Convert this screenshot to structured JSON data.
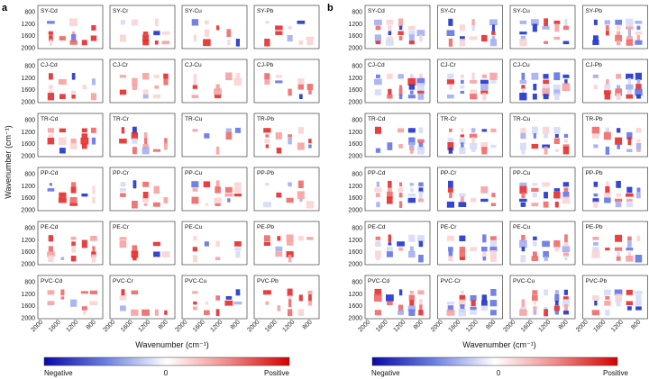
{
  "figure": {
    "panels": [
      {
        "letter": "a",
        "y_axis_label": "Wavenumber (cm⁻¹)",
        "x_axis_label": "Wavenumber (cm⁻¹)",
        "row_labels": [
          [
            "SY-Cd",
            "SY-Cr",
            "SY-Cu",
            "SY-Pb"
          ],
          [
            "CJ-Cd",
            "CJ-Cr",
            "CJ-Cu",
            "CJ-Pb"
          ],
          [
            "TR-Cd",
            "TR-Cr",
            "TR-Cu",
            "TR-Pb"
          ],
          [
            "PP-Cd",
            "PP-Cr",
            "PP-Cu",
            "PP-Pb"
          ],
          [
            "PE-Cd",
            "PE-Cr",
            "PE-Cu",
            "PE-Pb"
          ],
          [
            "PVC-Cd",
            "PVC-Cr",
            "PVC-Cu",
            "PVC-Pb"
          ]
        ],
        "y_ticks": [
          "800",
          "1200",
          "1600",
          "2000"
        ],
        "x_ticks": [
          "2000",
          "1600",
          "1200",
          "800"
        ]
      },
      {
        "letter": "b",
        "row_labels": [
          [
            "SY-Cd",
            "SY-Cr",
            "SY-Cu",
            "SY-Pb"
          ],
          [
            "CJ-Cd",
            "CJ-Cr",
            "CJ-Cu",
            "CJ-Pb"
          ],
          [
            "TR-Cd",
            "TR-Cr",
            "TR-Cu",
            "TR-Pb"
          ],
          [
            "PP-Cd",
            "PP-Cr",
            "PP-Cu",
            "PP-Pb"
          ],
          [
            "PE-Cd",
            "PE-Cr",
            "PE-Cu",
            "PE-Pb"
          ],
          [
            "PVC-Cd",
            "PVC-Cr",
            "PVC-Cu",
            "PVC-Pb"
          ]
        ],
        "y_ticks": [
          "800",
          "1200",
          "1600",
          "2000"
        ],
        "x_ticks": [
          "2000",
          "1600",
          "1200",
          "800"
        ],
        "x_axis_label": "Wavenumber (cm⁻¹)"
      }
    ],
    "colorbar": {
      "negative_label": "Negative",
      "zero_label": "0",
      "positive_label": "Positive",
      "negative_color": "#1a1acc",
      "positive_color": "#e01010"
    }
  }
}
